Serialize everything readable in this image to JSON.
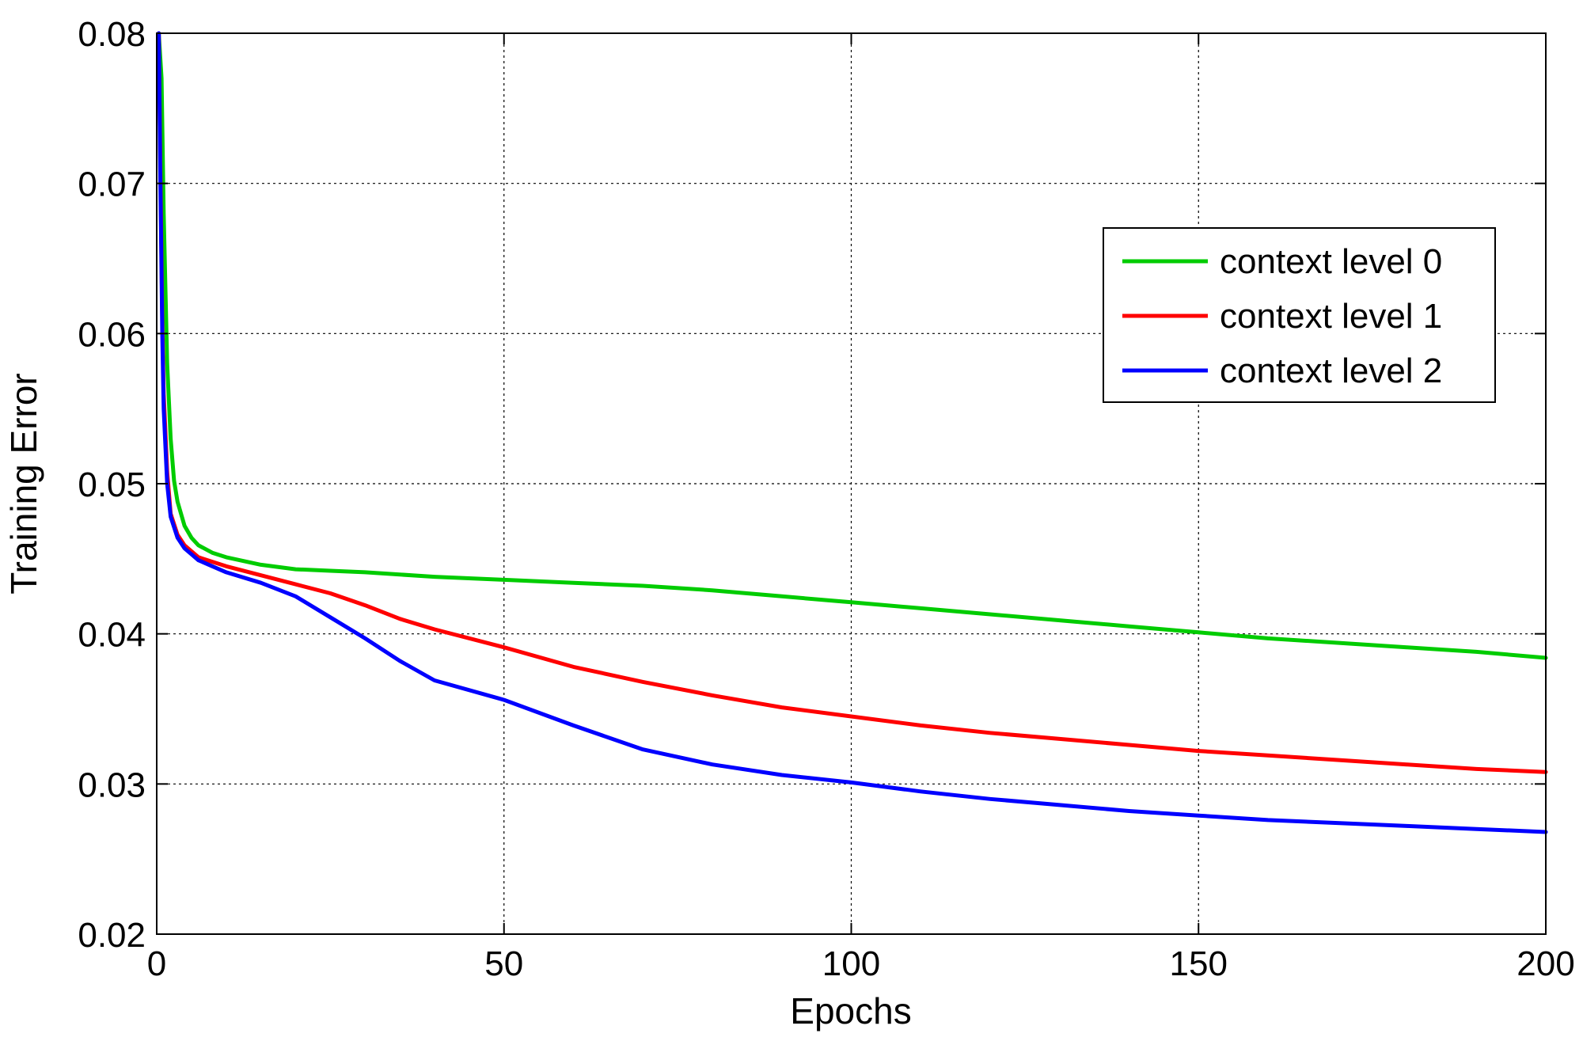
{
  "chart_data": {
    "type": "line",
    "title": "",
    "xlabel": "Epochs",
    "ylabel": "Training Error",
    "xlim": [
      0,
      200
    ],
    "ylim": [
      0.02,
      0.08
    ],
    "xticks": [
      0,
      50,
      100,
      150,
      200
    ],
    "xtick_labels": [
      "0",
      "50",
      "100",
      "150",
      "200"
    ],
    "yticks": [
      0.02,
      0.03,
      0.04,
      0.05,
      0.06,
      0.07,
      0.08
    ],
    "ytick_labels": [
      "0.02",
      "0.03",
      "0.04",
      "0.05",
      "0.06",
      "0.07",
      "0.08"
    ],
    "grid": true,
    "legend_position": "upper right",
    "series": [
      {
        "name": "context level 0",
        "color": "#00cc00",
        "x": [
          0.3,
          0.7,
          1,
          1.5,
          2,
          2.5,
          3,
          4,
          5,
          6,
          8,
          10,
          15,
          20,
          25,
          30,
          40,
          50,
          60,
          70,
          80,
          90,
          100,
          110,
          120,
          130,
          140,
          150,
          160,
          170,
          180,
          190,
          200
        ],
        "y": [
          0.08,
          0.077,
          0.068,
          0.058,
          0.053,
          0.0502,
          0.0488,
          0.0472,
          0.0464,
          0.0459,
          0.0454,
          0.0451,
          0.0446,
          0.0443,
          0.0442,
          0.0441,
          0.0438,
          0.0436,
          0.0434,
          0.0432,
          0.0429,
          0.0425,
          0.0421,
          0.0417,
          0.0413,
          0.0409,
          0.0405,
          0.0401,
          0.0397,
          0.0394,
          0.0391,
          0.0388,
          0.0384
        ]
      },
      {
        "name": "context level 1",
        "color": "#ff0000",
        "x": [
          0.3,
          0.5,
          0.8,
          1,
          1.5,
          2,
          3,
          4,
          5,
          6,
          8,
          10,
          15,
          20,
          25,
          30,
          35,
          40,
          50,
          60,
          70,
          80,
          90,
          100,
          110,
          120,
          130,
          140,
          150,
          160,
          170,
          180,
          190,
          200
        ],
        "y": [
          0.08,
          0.072,
          0.061,
          0.056,
          0.0508,
          0.048,
          0.0466,
          0.0459,
          0.0455,
          0.0451,
          0.0448,
          0.0445,
          0.0439,
          0.0433,
          0.0427,
          0.0419,
          0.041,
          0.0403,
          0.0391,
          0.0378,
          0.0368,
          0.0359,
          0.0351,
          0.0345,
          0.0339,
          0.0334,
          0.033,
          0.0326,
          0.0322,
          0.0319,
          0.0316,
          0.0313,
          0.031,
          0.0308
        ]
      },
      {
        "name": "context level 2",
        "color": "#0000ff",
        "x": [
          0.3,
          0.5,
          0.8,
          1,
          1.5,
          2,
          3,
          4,
          5,
          6,
          8,
          10,
          15,
          20,
          25,
          30,
          35,
          40,
          50,
          60,
          70,
          80,
          90,
          100,
          110,
          120,
          130,
          140,
          150,
          160,
          170,
          180,
          190,
          200
        ],
        "y": [
          0.08,
          0.071,
          0.06,
          0.055,
          0.05,
          0.0478,
          0.0464,
          0.0457,
          0.0453,
          0.0449,
          0.0445,
          0.0441,
          0.0434,
          0.0425,
          0.0411,
          0.0397,
          0.0382,
          0.0369,
          0.0356,
          0.0339,
          0.0323,
          0.0313,
          0.0306,
          0.0301,
          0.0295,
          0.029,
          0.0286,
          0.0282,
          0.0279,
          0.0276,
          0.0274,
          0.0272,
          0.027,
          0.0268
        ]
      }
    ]
  }
}
